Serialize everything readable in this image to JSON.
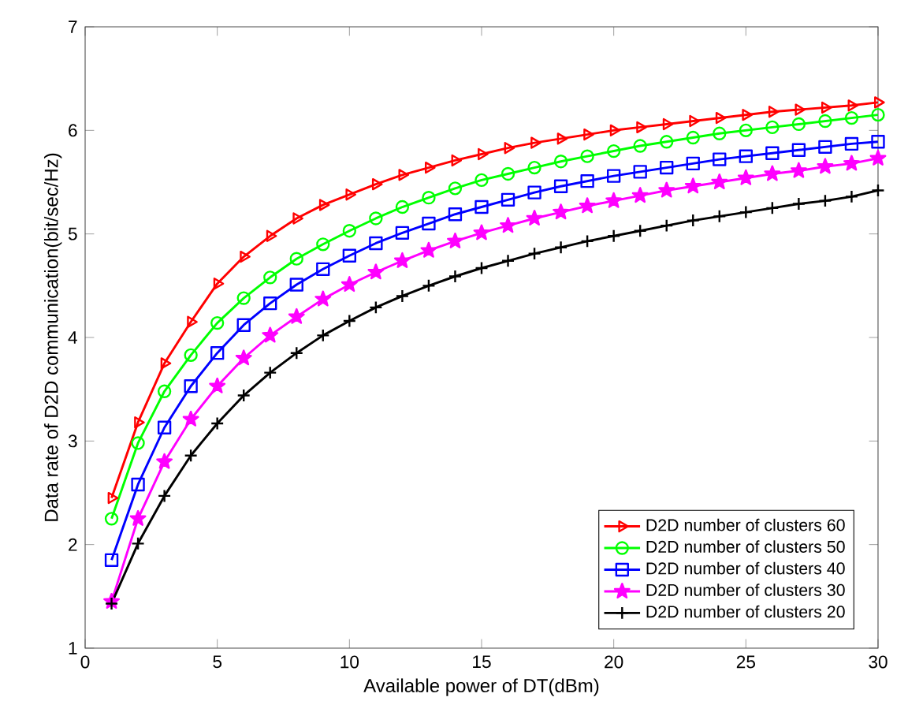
{
  "chart_data": {
    "type": "line",
    "xlabel": "Available power of DT(dBm)",
    "ylabel": "Data rate of D2D communication(bit/sec/Hz)",
    "x": [
      1,
      2,
      3,
      4,
      5,
      6,
      7,
      8,
      9,
      10,
      11,
      12,
      13,
      14,
      15,
      16,
      17,
      18,
      19,
      20,
      21,
      22,
      23,
      24,
      25,
      26,
      27,
      28,
      29,
      30
    ],
    "series": [
      {
        "name": "D2D number of clusters 60",
        "color": "#ff0000",
        "marker": "triangle",
        "values": [
          2.45,
          3.18,
          3.75,
          4.15,
          4.52,
          4.78,
          4.98,
          5.15,
          5.28,
          5.38,
          5.48,
          5.57,
          5.64,
          5.71,
          5.77,
          5.83,
          5.88,
          5.92,
          5.96,
          6.0,
          6.03,
          6.06,
          6.09,
          6.12,
          6.15,
          6.18,
          6.2,
          6.22,
          6.24,
          6.27
        ]
      },
      {
        "name": "D2D number of clusters 50",
        "color": "#00ff00",
        "marker": "circle",
        "values": [
          2.25,
          2.98,
          3.48,
          3.83,
          4.14,
          4.38,
          4.58,
          4.76,
          4.9,
          5.03,
          5.15,
          5.26,
          5.35,
          5.44,
          5.52,
          5.58,
          5.64,
          5.7,
          5.75,
          5.8,
          5.85,
          5.89,
          5.93,
          5.97,
          6.0,
          6.03,
          6.06,
          6.09,
          6.12,
          6.15
        ]
      },
      {
        "name": "D2D number of clusters 40",
        "color": "#0000ff",
        "marker": "square",
        "values": [
          1.85,
          2.58,
          3.13,
          3.53,
          3.85,
          4.12,
          4.33,
          4.51,
          4.66,
          4.79,
          4.91,
          5.01,
          5.1,
          5.19,
          5.26,
          5.33,
          5.4,
          5.46,
          5.51,
          5.56,
          5.6,
          5.64,
          5.68,
          5.72,
          5.75,
          5.78,
          5.81,
          5.84,
          5.87,
          5.89
        ]
      },
      {
        "name": "D2D number of clusters 30",
        "color": "#ff00ff",
        "marker": "star",
        "values": [
          1.45,
          2.25,
          2.8,
          3.21,
          3.53,
          3.8,
          4.02,
          4.2,
          4.37,
          4.51,
          4.63,
          4.74,
          4.84,
          4.93,
          5.01,
          5.08,
          5.15,
          5.21,
          5.27,
          5.32,
          5.37,
          5.42,
          5.46,
          5.5,
          5.54,
          5.58,
          5.61,
          5.65,
          5.68,
          5.73
        ]
      },
      {
        "name": "D2D number of clusters 20",
        "color": "#000000",
        "marker": "cross",
        "values": [
          1.43,
          2.01,
          2.47,
          2.86,
          3.17,
          3.44,
          3.66,
          3.85,
          4.02,
          4.16,
          4.29,
          4.4,
          4.5,
          4.59,
          4.67,
          4.74,
          4.81,
          4.87,
          4.93,
          4.98,
          5.03,
          5.08,
          5.13,
          5.17,
          5.21,
          5.25,
          5.29,
          5.32,
          5.36,
          5.42
        ]
      }
    ],
    "xlim": [
      0,
      30
    ],
    "xticks": [
      0,
      5,
      10,
      15,
      20,
      25,
      30
    ],
    "ylim": [
      1,
      7
    ],
    "yticks": [
      1,
      2,
      3,
      4,
      5,
      6,
      7
    ],
    "grid": false,
    "legend": "bottom right",
    "line_style": "solid"
  }
}
